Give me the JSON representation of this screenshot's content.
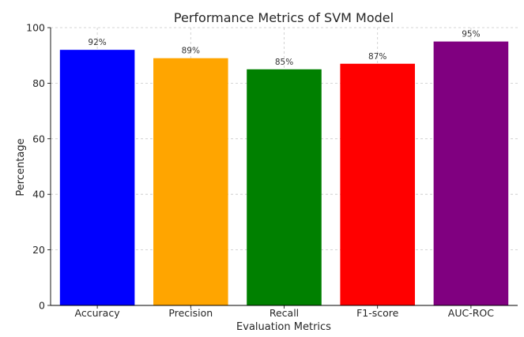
{
  "chart_data": {
    "type": "bar",
    "title": "Performance Metrics of SVM Model",
    "xlabel": "Evaluation Metrics",
    "ylabel": "Percentage",
    "categories": [
      "Accuracy",
      "Precision",
      "Recall",
      "F1-score",
      "AUC-ROC"
    ],
    "values": [
      92,
      89,
      85,
      87,
      95
    ],
    "data_labels": [
      "92%",
      "89%",
      "85%",
      "87%",
      "95%"
    ],
    "colors": [
      "#0000ff",
      "#ffa500",
      "#008000",
      "#ff0000",
      "#800080"
    ],
    "ylim": [
      0,
      100
    ],
    "yticks": [
      0,
      20,
      40,
      60,
      80,
      100
    ],
    "grid": true,
    "legend": "none"
  }
}
